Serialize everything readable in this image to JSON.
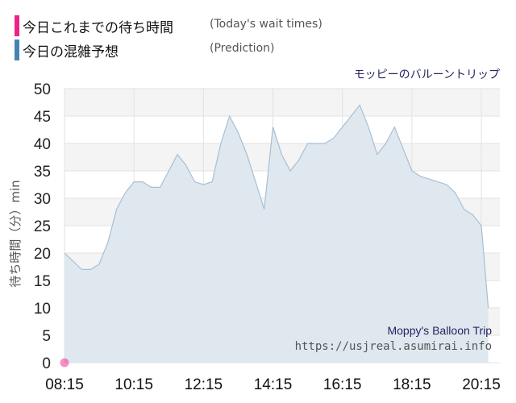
{
  "legend": {
    "items": [
      {
        "label": "今日これまでの待ち時間",
        "sublabel": "(Today's wait times)",
        "color": "#ee2288"
      },
      {
        "label": "今日の混雑予想",
        "sublabel": "(Prediction)",
        "color": "#4682b4"
      }
    ]
  },
  "attribution": {
    "name": "Moppy's Balloon Trip",
    "url": "https://usjreal.asumirai.info"
  },
  "chart_data": {
    "type": "area",
    "title": "モッピーのバルーントリップ",
    "xlabel": "",
    "ylabel": "待ち時間（分）min",
    "ylim": [
      0,
      50
    ],
    "yticks": [
      0,
      5,
      10,
      15,
      20,
      25,
      30,
      35,
      40,
      45,
      50
    ],
    "xticks": [
      "08:15",
      "10:15",
      "12:15",
      "14:15",
      "16:15",
      "18:15",
      "20:15"
    ],
    "xlim_minutes": [
      495,
      1247
    ],
    "grid": true,
    "series": [
      {
        "name": "今日の混雑予想",
        "color": "#a9bfd3",
        "fill": "#dde7ee",
        "x": [
          "08:15",
          "08:45",
          "09:00",
          "09:15",
          "09:30",
          "09:45",
          "10:00",
          "10:15",
          "10:30",
          "10:45",
          "11:00",
          "11:15",
          "11:30",
          "11:45",
          "12:00",
          "12:15",
          "12:30",
          "12:45",
          "13:00",
          "13:15",
          "13:30",
          "13:45",
          "14:00",
          "14:15",
          "14:30",
          "14:45",
          "15:00",
          "15:15",
          "15:30",
          "15:45",
          "16:00",
          "16:15",
          "16:30",
          "16:45",
          "17:00",
          "17:15",
          "17:30",
          "17:45",
          "18:00",
          "18:15",
          "18:30",
          "18:45",
          "19:00",
          "19:15",
          "19:30",
          "19:45",
          "20:00",
          "20:15",
          "20:27"
        ],
        "values": [
          20,
          17,
          17,
          18,
          22,
          28,
          31,
          33,
          33,
          32,
          32,
          35,
          38,
          36,
          33,
          32.5,
          33,
          40,
          45,
          42,
          38,
          33,
          28,
          43,
          38,
          35,
          37,
          40,
          40,
          40,
          41,
          43,
          45,
          47,
          43,
          38,
          40,
          43,
          39,
          35,
          34,
          33.5,
          33,
          32.5,
          31,
          28,
          27,
          25,
          10
        ]
      },
      {
        "name": "今日これまでの待ち時間",
        "color": "#ee2288",
        "x": [
          "08:15"
        ],
        "values": [
          0
        ]
      }
    ]
  }
}
